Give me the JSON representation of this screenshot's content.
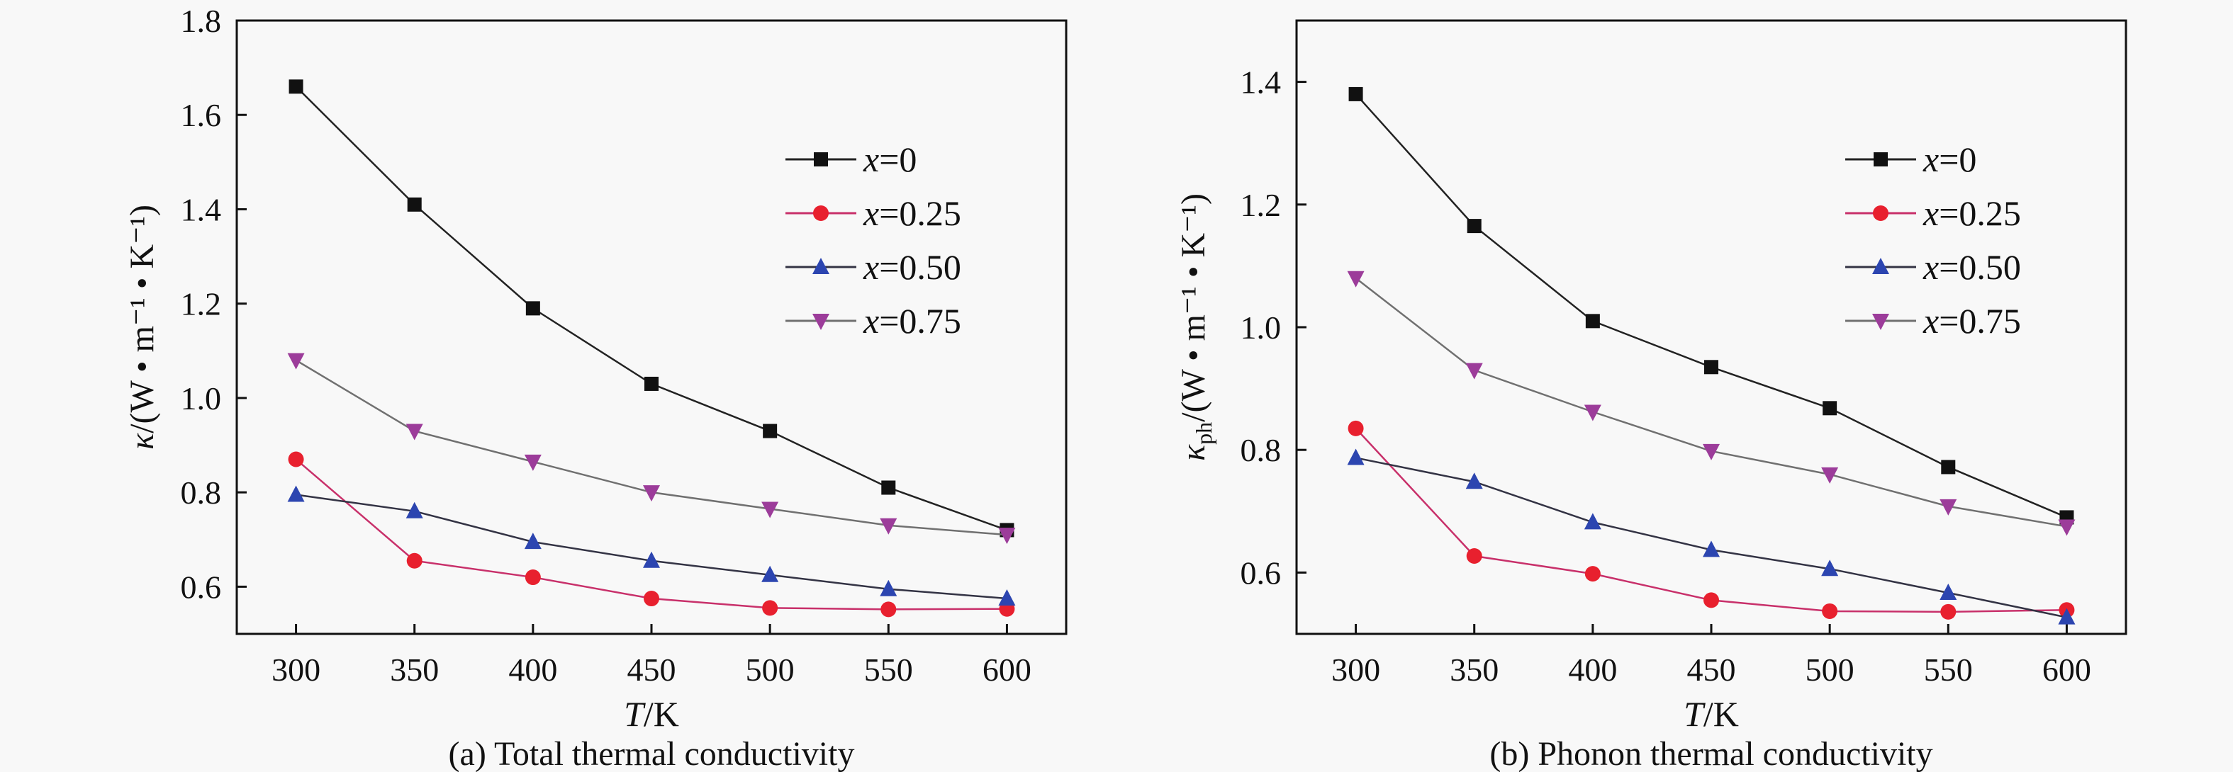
{
  "chart_data": [
    {
      "id": "a",
      "type": "line",
      "title": "(a) Total thermal conductivity",
      "xlabel": "T/K",
      "xlabel_italic": "T",
      "xlabel_rest": "/K",
      "ylabel": "κ/(W • m⁻¹ • K⁻¹)",
      "ylabel_symbol": "κ",
      "ylabel_sub": "",
      "ylabel_units": "/(W • m⁻¹ • K⁻¹)",
      "x": [
        300,
        350,
        400,
        450,
        500,
        550,
        600
      ],
      "xlim": [
        275,
        625
      ],
      "ylim": [
        0.5,
        1.8
      ],
      "xticks": [
        300,
        350,
        400,
        450,
        500,
        550,
        600
      ],
      "yticks": [
        0.6,
        0.8,
        1.0,
        1.2,
        1.4,
        1.6,
        1.8
      ],
      "ytick_labels": [
        "0.6",
        "0.8",
        "1.0",
        "1.2",
        "1.4",
        "1.6",
        "1.8"
      ],
      "grid": false,
      "legend_position": "top-right",
      "series": [
        {
          "name": "x=0",
          "label_var": "x",
          "label_val": "=0",
          "marker": "square",
          "marker_color": "#111111",
          "line_color": "#222222",
          "values": [
            1.66,
            1.41,
            1.19,
            1.03,
            0.93,
            0.81,
            0.72
          ]
        },
        {
          "name": "x=0.25",
          "label_var": "x",
          "label_val": "=0.25",
          "marker": "circle",
          "marker_color": "#e8202e",
          "line_color": "#c8306a",
          "values": [
            0.87,
            0.655,
            0.62,
            0.575,
            0.555,
            0.552,
            0.553
          ]
        },
        {
          "name": "x=0.50",
          "label_var": "x",
          "label_val": "=0.50",
          "marker": "triangle-up",
          "marker_color": "#2c45b0",
          "line_color": "#333344",
          "values": [
            0.795,
            0.76,
            0.695,
            0.655,
            0.625,
            0.595,
            0.575
          ]
        },
        {
          "name": "x=0.75",
          "label_var": "x",
          "label_val": "=0.75",
          "marker": "triangle-down",
          "marker_color": "#9c3c9a",
          "line_color": "#707070",
          "values": [
            1.08,
            0.93,
            0.865,
            0.8,
            0.765,
            0.73,
            0.71
          ]
        }
      ]
    },
    {
      "id": "b",
      "type": "line",
      "title": "(b) Phonon thermal conductivity",
      "xlabel": "T/K",
      "xlabel_italic": "T",
      "xlabel_rest": "/K",
      "ylabel": "κph/(W • m⁻¹ • K⁻¹)",
      "ylabel_symbol": "κ",
      "ylabel_sub": "ph",
      "ylabel_units": "/(W • m⁻¹ • K⁻¹)",
      "x": [
        300,
        350,
        400,
        450,
        500,
        550,
        600
      ],
      "xlim": [
        275,
        625
      ],
      "ylim": [
        0.5,
        1.5
      ],
      "xticks": [
        300,
        350,
        400,
        450,
        500,
        550,
        600
      ],
      "yticks": [
        0.6,
        0.8,
        1.0,
        1.2,
        1.4
      ],
      "ytick_labels": [
        "0.6",
        "0.8",
        "1.0",
        "1.2",
        "1.4"
      ],
      "grid": false,
      "legend_position": "top-right",
      "series": [
        {
          "name": "x=0",
          "label_var": "x",
          "label_val": "=0",
          "marker": "square",
          "marker_color": "#111111",
          "line_color": "#222222",
          "values": [
            1.38,
            1.165,
            1.01,
            0.935,
            0.868,
            0.772,
            0.69
          ]
        },
        {
          "name": "x=0.25",
          "label_var": "x",
          "label_val": "=0.25",
          "marker": "circle",
          "marker_color": "#e8202e",
          "line_color": "#c8306a",
          "values": [
            0.835,
            0.627,
            0.598,
            0.555,
            0.537,
            0.536,
            0.539
          ]
        },
        {
          "name": "x=0.50",
          "label_var": "x",
          "label_val": "=0.50",
          "marker": "triangle-up",
          "marker_color": "#2c45b0",
          "line_color": "#333344",
          "values": [
            0.787,
            0.748,
            0.682,
            0.637,
            0.606,
            0.567,
            0.527
          ]
        },
        {
          "name": "x=0.75",
          "label_var": "x",
          "label_val": "=0.75",
          "marker": "triangle-down",
          "marker_color": "#9c3c9a",
          "line_color": "#707070",
          "values": [
            1.08,
            0.93,
            0.862,
            0.798,
            0.76,
            0.708,
            0.675
          ]
        }
      ]
    }
  ]
}
